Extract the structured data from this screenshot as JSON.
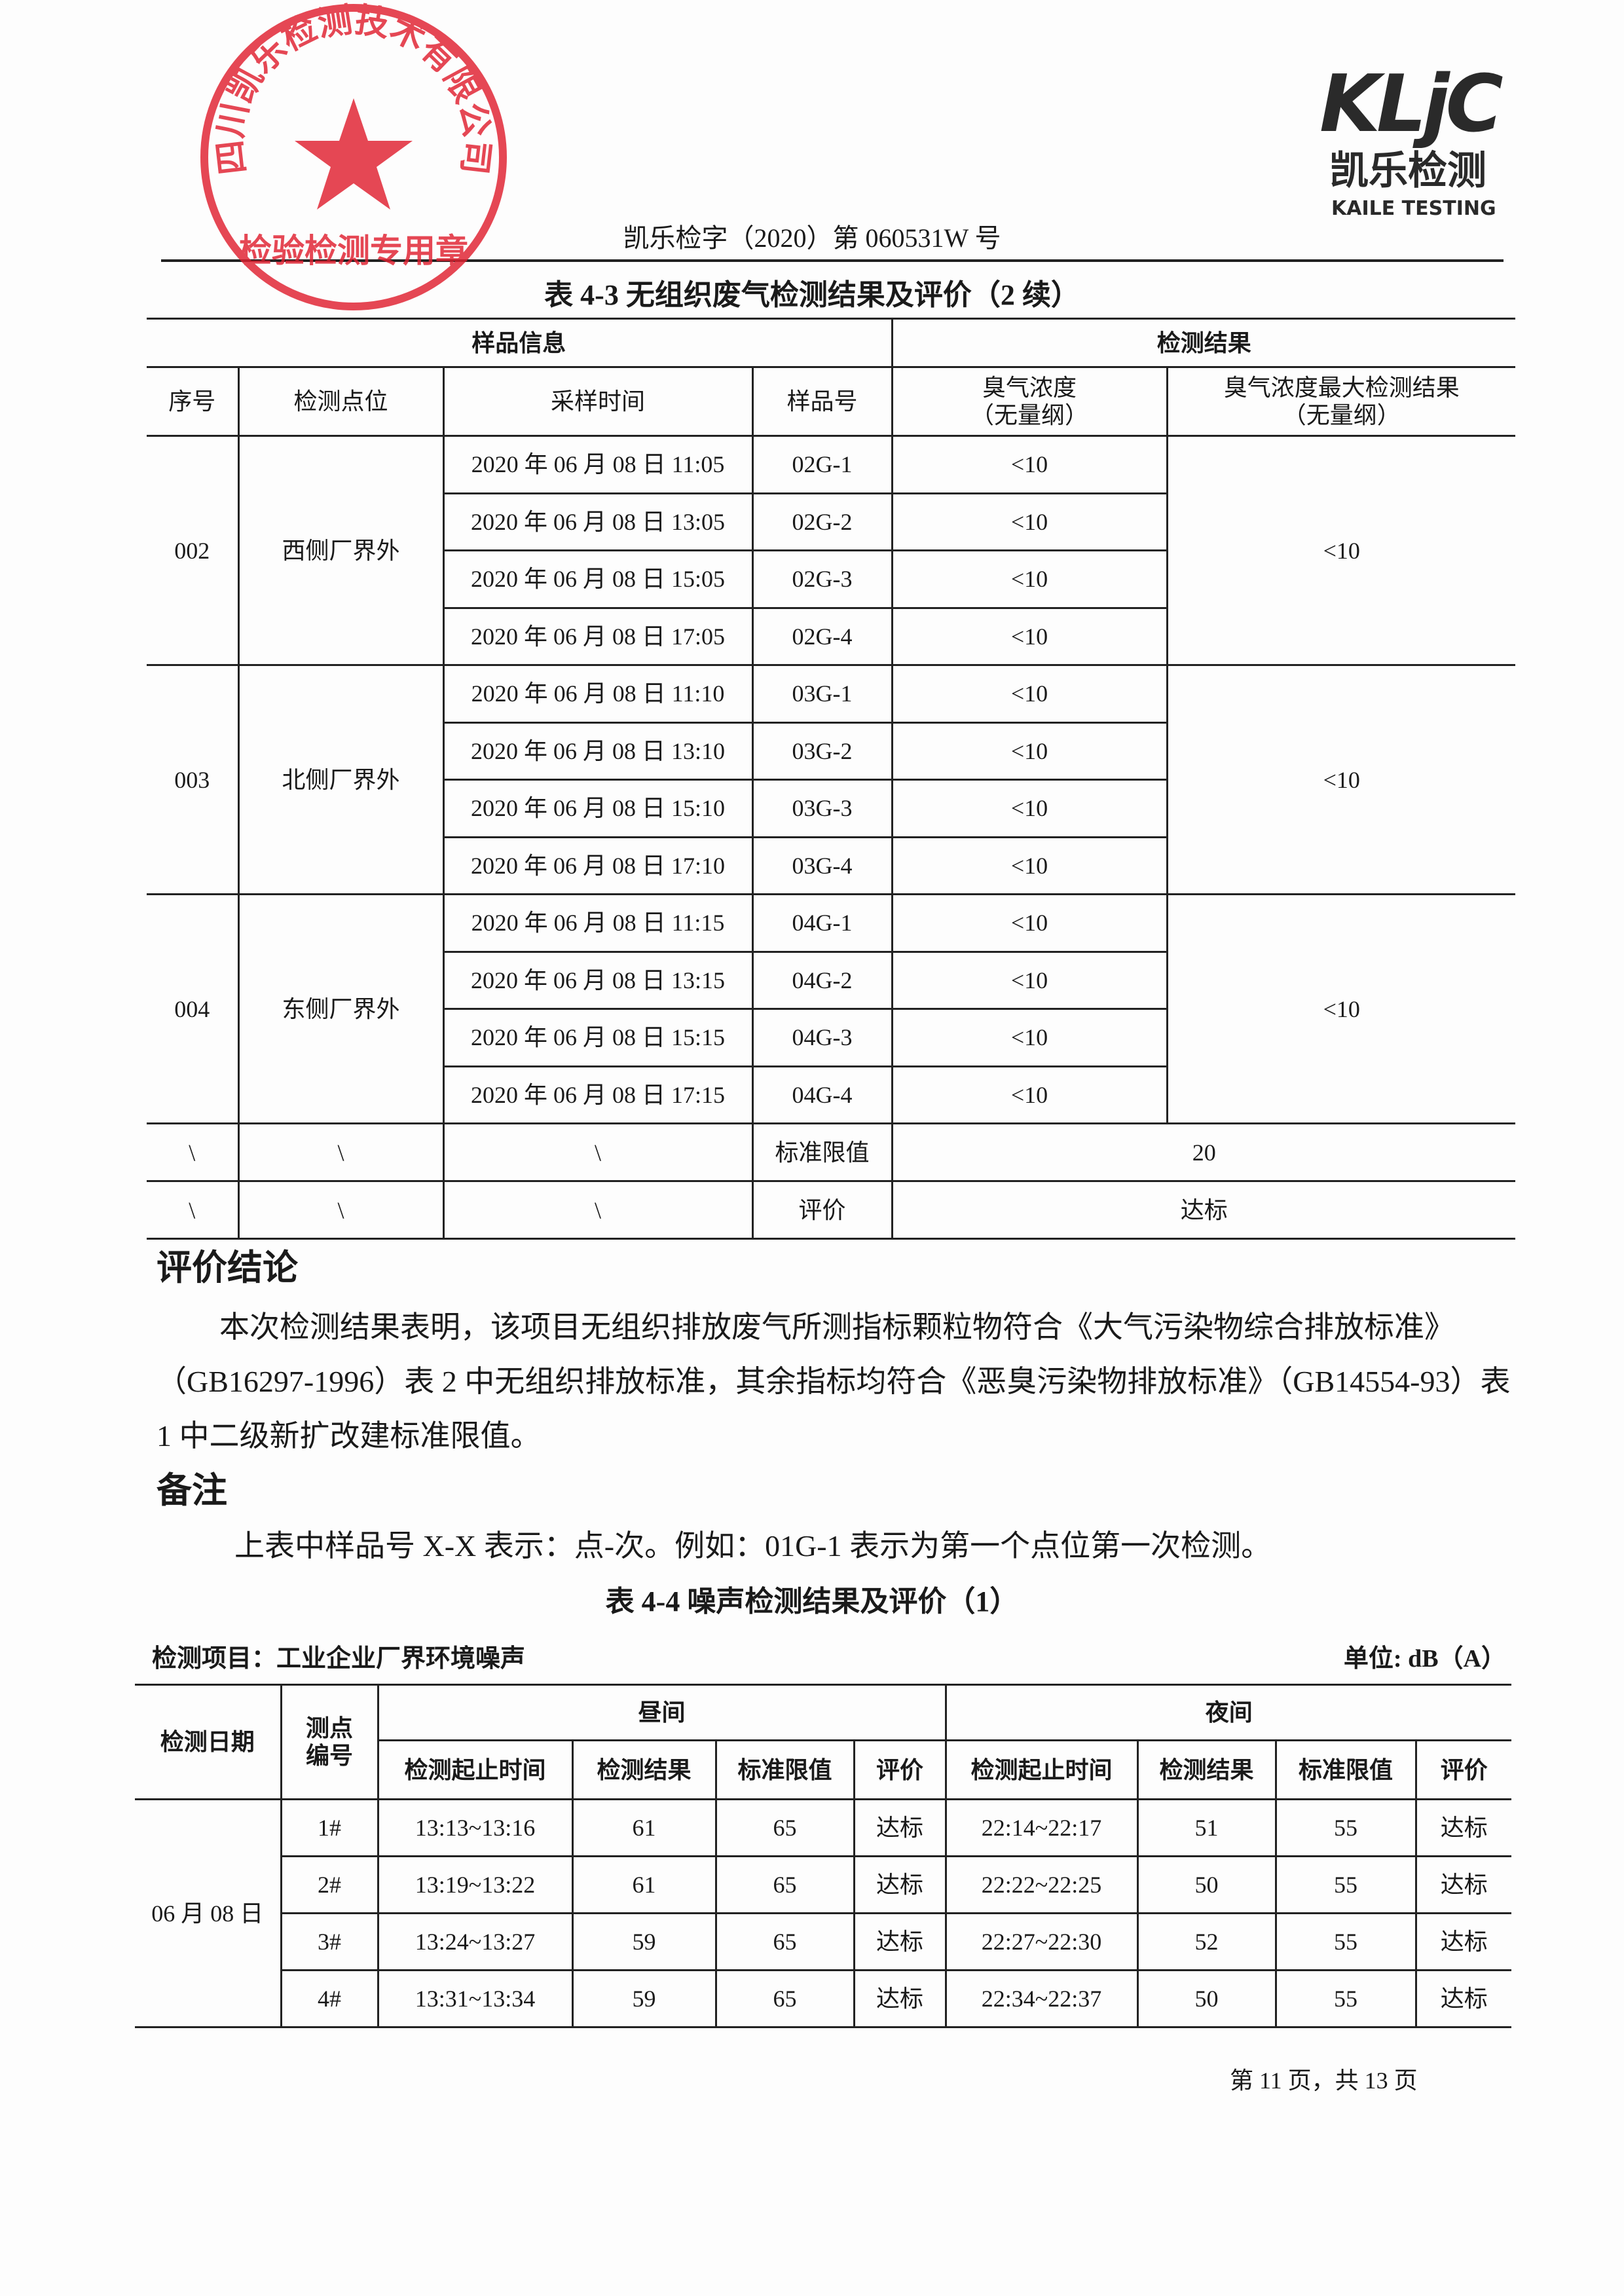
{
  "logo": {
    "mark": "KLjC",
    "cn": "凯乐检测",
    "en": "KAILE TESTING"
  },
  "doc_number": "凯乐检字（2020）第 060531W 号",
  "table43": {
    "title": "表 4-3    无组织废气检测结果及评价（2 续）",
    "group_headers": [
      "样品信息",
      "检测结果"
    ],
    "headers": [
      "序号",
      "检测点位",
      "采样时间",
      "样品号",
      "臭气浓度\n（无量纲）",
      "臭气浓度最大检测结果\n（无量纲）"
    ],
    "groups": [
      {
        "no": "002",
        "location": "西侧厂界外",
        "max": "<10",
        "rows": [
          {
            "time": "2020 年 06 月 08 日 11:05",
            "sample": "02G-1",
            "value": "<10"
          },
          {
            "time": "2020 年 06 月 08 日 13:05",
            "sample": "02G-2",
            "value": "<10"
          },
          {
            "time": "2020 年 06 月 08 日 15:05",
            "sample": "02G-3",
            "value": "<10"
          },
          {
            "time": "2020 年 06 月 08 日 17:05",
            "sample": "02G-4",
            "value": "<10"
          }
        ]
      },
      {
        "no": "003",
        "location": "北侧厂界外",
        "max": "<10",
        "rows": [
          {
            "time": "2020 年 06 月 08 日 11:10",
            "sample": "03G-1",
            "value": "<10"
          },
          {
            "time": "2020 年 06 月 08 日 13:10",
            "sample": "03G-2",
            "value": "<10"
          },
          {
            "time": "2020 年 06 月 08 日 15:10",
            "sample": "03G-3",
            "value": "<10"
          },
          {
            "time": "2020 年 06 月 08 日 17:10",
            "sample": "03G-4",
            "value": "<10"
          }
        ]
      },
      {
        "no": "004",
        "location": "东侧厂界外",
        "max": "<10",
        "rows": [
          {
            "time": "2020 年 06 月 08 日 11:15",
            "sample": "04G-1",
            "value": "<10"
          },
          {
            "time": "2020 年 06 月 08 日 13:15",
            "sample": "04G-2",
            "value": "<10"
          },
          {
            "time": "2020 年 06 月 08 日 15:15",
            "sample": "04G-3",
            "value": "<10"
          },
          {
            "time": "2020 年 06 月 08 日 17:15",
            "sample": "04G-4",
            "value": "<10"
          }
        ]
      }
    ],
    "footer_rows": [
      {
        "cells": [
          "\\",
          "\\",
          "\\"
        ],
        "label": "标准限值",
        "value": "20"
      },
      {
        "cells": [
          "\\",
          "\\",
          "\\"
        ],
        "label": "评价",
        "value": "达标"
      }
    ]
  },
  "conclusion": {
    "heading": "评价结论",
    "text": "本次检测结果表明，该项目无组织排放废气所测指标颗粒物符合《大气污染物综合排放标准》（GB16297-1996）表 2 中无组织排放标准，其余指标均符合《恶臭污染物排放标准》（GB14554-93）表 1 中二级新扩改建标准限值。"
  },
  "remark": {
    "heading": "备注",
    "text": "上表中样品号 X-X 表示：点-次。例如：01G-1 表示为第一个点位第一次检测。"
  },
  "table44": {
    "title": "表 4-4    噪声检测结果及评价（1）",
    "item": "检测项目：工业企业厂界环境噪声",
    "unit": "单位: dB（A）",
    "headers": {
      "date": "检测日期",
      "point": "测点\n编号",
      "day": "昼间",
      "night": "夜间",
      "sub": [
        "检测起止时间",
        "检测结果",
        "标准限值",
        "评价"
      ]
    },
    "date": "06 月 08 日",
    "rows": [
      {
        "point": "1#",
        "day_time": "13:13~13:16",
        "day_result": "61",
        "day_limit": "65",
        "day_eval": "达标",
        "night_time": "22:14~22:17",
        "night_result": "51",
        "night_limit": "55",
        "night_eval": "达标"
      },
      {
        "point": "2#",
        "day_time": "13:19~13:22",
        "day_result": "61",
        "day_limit": "65",
        "day_eval": "达标",
        "night_time": "22:22~22:25",
        "night_result": "50",
        "night_limit": "55",
        "night_eval": "达标"
      },
      {
        "point": "3#",
        "day_time": "13:24~13:27",
        "day_result": "59",
        "day_limit": "65",
        "day_eval": "达标",
        "night_time": "22:27~22:30",
        "night_result": "52",
        "night_limit": "55",
        "night_eval": "达标"
      },
      {
        "point": "4#",
        "day_time": "13:31~13:34",
        "day_result": "59",
        "day_limit": "65",
        "day_eval": "达标",
        "night_time": "22:34~22:37",
        "night_result": "50",
        "night_limit": "55",
        "night_eval": "达标"
      }
    ]
  },
  "stamp": {
    "text": "四川凯乐检测技术有限公司",
    "sub": "检验检测专用章",
    "color": "#e02030"
  },
  "page_footer": "第 11 页，共 13 页"
}
